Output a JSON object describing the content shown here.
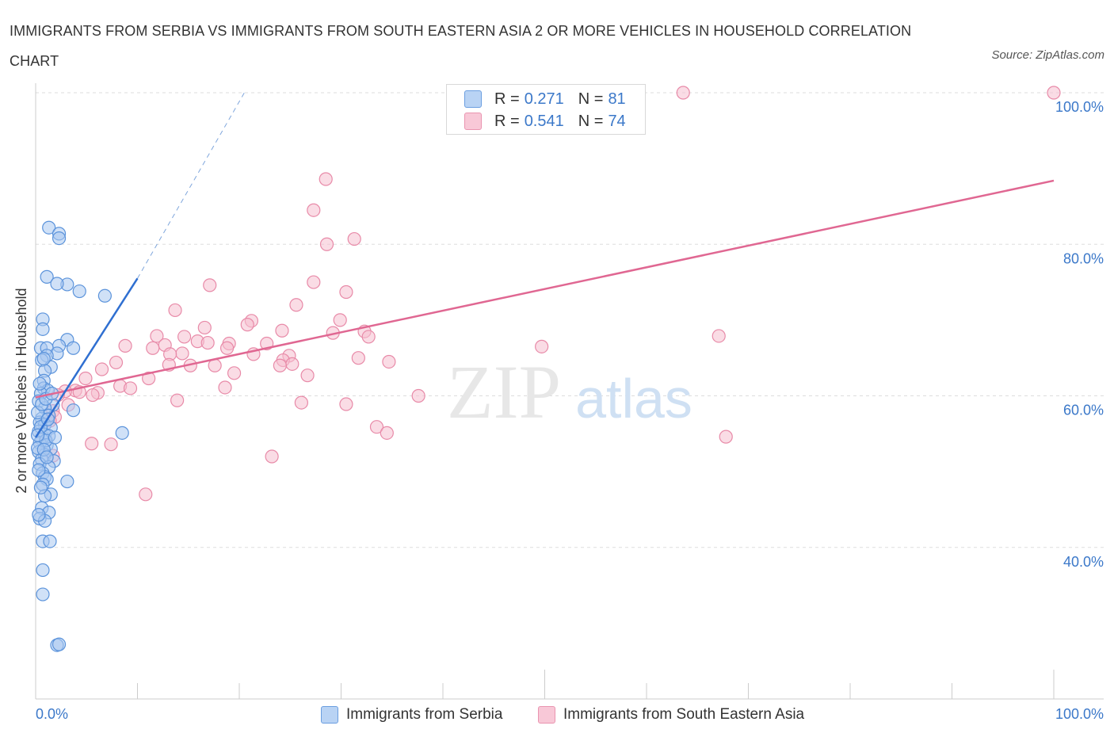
{
  "title": "IMMIGRANTS FROM SERBIA VS IMMIGRANTS FROM SOUTH EASTERN ASIA 2 OR MORE VEHICLES IN HOUSEHOLD CORRELATION CHART",
  "source": "Source: ZipAtlas.com",
  "watermark": {
    "zip": "ZIP",
    "atlas": "atlas"
  },
  "legend": {
    "rows": [
      {
        "r_label": "R =",
        "r_value": "0.271",
        "n_label": "N =",
        "n_value": "81"
      },
      {
        "r_label": "R =",
        "r_value": "0.541",
        "n_label": "N =",
        "n_value": "74"
      }
    ]
  },
  "bottom_legend": [
    "Immigrants from Serbia",
    "Immigrants from South Eastern Asia"
  ],
  "colors": {
    "serbia_fill": "#a9c8f0",
    "serbia_stroke": "#5b93db",
    "serbia_line": "#2f6fd1",
    "sea_fill": "#f6bfd0",
    "sea_stroke": "#e88aa8",
    "sea_line": "#e06792",
    "axis_label": "#3b78c9",
    "grid": "#dddddd"
  },
  "chart_data": {
    "type": "scatter",
    "ylabel": "2 or more Vehicles in Household",
    "xlim": [
      0,
      100
    ],
    "ylim": [
      20,
      100
    ],
    "x_tick_labels": [
      "0.0%",
      "100.0%"
    ],
    "y_ticks": [
      40,
      60,
      80,
      100
    ],
    "y_tick_labels": [
      "40.0%",
      "60.0%",
      "80.0%",
      "100.0%"
    ],
    "grid": "horizontal dashed",
    "series": [
      {
        "name": "Immigrants from Serbia",
        "color": "#5b93db",
        "R": 0.271,
        "N": 81,
        "trend": {
          "x": [
            0,
            10
          ],
          "y": [
            54.5,
            75.5
          ],
          "dashed_to": {
            "x": 20.5,
            "y": 100
          }
        },
        "points": [
          [
            1.3,
            82.2
          ],
          [
            2.3,
            81.4
          ],
          [
            2.3,
            80.8
          ],
          [
            1.1,
            75.7
          ],
          [
            3.1,
            74.7
          ],
          [
            2.1,
            74.8
          ],
          [
            4.3,
            73.8
          ],
          [
            6.8,
            73.2
          ],
          [
            0.7,
            70.1
          ],
          [
            0.7,
            68.8
          ],
          [
            3.1,
            67.4
          ],
          [
            2.3,
            66.6
          ],
          [
            0.5,
            66.3
          ],
          [
            1.1,
            66.3
          ],
          [
            3.7,
            66.3
          ],
          [
            2.1,
            65.6
          ],
          [
            1.1,
            65.3
          ],
          [
            0.6,
            64.7
          ],
          [
            1.5,
            63.8
          ],
          [
            0.9,
            63.3
          ],
          [
            0.8,
            62.0
          ],
          [
            0.8,
            61.0
          ],
          [
            1.2,
            60.7
          ],
          [
            0.5,
            60.3
          ],
          [
            0.3,
            59.3
          ],
          [
            1.7,
            58.8
          ],
          [
            0.9,
            58.4
          ],
          [
            3.7,
            58.1
          ],
          [
            1.3,
            57.4
          ],
          [
            0.6,
            57.0
          ],
          [
            0.4,
            56.5
          ],
          [
            0.9,
            56.2
          ],
          [
            1.5,
            55.8
          ],
          [
            0.3,
            55.3
          ],
          [
            0.9,
            54.9
          ],
          [
            1.3,
            54.7
          ],
          [
            0.6,
            54.3
          ],
          [
            0.4,
            53.8
          ],
          [
            1.1,
            53.5
          ],
          [
            1.5,
            53.0
          ],
          [
            0.3,
            52.6
          ],
          [
            0.9,
            52.2
          ],
          [
            0.6,
            51.6
          ],
          [
            1.8,
            51.4
          ],
          [
            0.4,
            51.0
          ],
          [
            1.3,
            50.6
          ],
          [
            0.7,
            49.8
          ],
          [
            0.9,
            49.3
          ],
          [
            1.1,
            49.0
          ],
          [
            3.1,
            48.7
          ],
          [
            0.7,
            48.3
          ],
          [
            1.5,
            47.0
          ],
          [
            0.9,
            46.8
          ],
          [
            0.6,
            45.2
          ],
          [
            1.3,
            44.6
          ],
          [
            0.4,
            43.8
          ],
          [
            0.9,
            43.5
          ],
          [
            0.7,
            40.8
          ],
          [
            1.4,
            40.8
          ],
          [
            0.7,
            37.0
          ],
          [
            0.7,
            33.8
          ],
          [
            2.1,
            27.1
          ],
          [
            2.3,
            27.2
          ],
          [
            8.5,
            55.1
          ],
          [
            0.2,
            57.8
          ],
          [
            0.5,
            55.9
          ],
          [
            1.0,
            54.1
          ],
          [
            0.2,
            53.1
          ],
          [
            0.8,
            52.9
          ],
          [
            0.3,
            50.2
          ],
          [
            1.2,
            56.9
          ],
          [
            0.6,
            58.9
          ],
          [
            1.9,
            54.5
          ],
          [
            0.4,
            61.6
          ],
          [
            1.0,
            59.6
          ],
          [
            0.5,
            47.9
          ],
          [
            0.8,
            64.9
          ],
          [
            1.6,
            60.3
          ],
          [
            0.3,
            44.3
          ],
          [
            1.1,
            51.9
          ],
          [
            0.2,
            54.8
          ]
        ]
      },
      {
        "name": "Immigrants from South Eastern Asia",
        "color": "#e88aa8",
        "R": 0.541,
        "N": 74,
        "trend": {
          "x": [
            0,
            100
          ],
          "y": [
            59.8,
            88.4
          ]
        },
        "points": [
          [
            63.6,
            100
          ],
          [
            100,
            100
          ],
          [
            28.5,
            88.6
          ],
          [
            27.3,
            84.5
          ],
          [
            31.3,
            80.7
          ],
          [
            28.6,
            80.0
          ],
          [
            17.1,
            74.6
          ],
          [
            27.3,
            75.0
          ],
          [
            30.5,
            73.7
          ],
          [
            25.6,
            72.0
          ],
          [
            13.7,
            71.3
          ],
          [
            21.2,
            69.9
          ],
          [
            29.9,
            70.0
          ],
          [
            20.8,
            69.4
          ],
          [
            16.6,
            69.0
          ],
          [
            24.2,
            68.6
          ],
          [
            29.2,
            68.3
          ],
          [
            32.3,
            68.5
          ],
          [
            11.9,
            67.9
          ],
          [
            14.6,
            67.8
          ],
          [
            32.7,
            67.8
          ],
          [
            67.1,
            67.9
          ],
          [
            15.9,
            67.2
          ],
          [
            16.9,
            67.0
          ],
          [
            19.0,
            66.9
          ],
          [
            22.7,
            66.9
          ],
          [
            12.7,
            66.7
          ],
          [
            8.8,
            66.6
          ],
          [
            18.8,
            66.3
          ],
          [
            11.5,
            66.3
          ],
          [
            14.4,
            65.6
          ],
          [
            49.7,
            66.5
          ],
          [
            13.2,
            65.5
          ],
          [
            21.4,
            65.5
          ],
          [
            24.9,
            65.3
          ],
          [
            31.7,
            65.0
          ],
          [
            24.3,
            64.7
          ],
          [
            25.2,
            64.2
          ],
          [
            34.7,
            64.5
          ],
          [
            7.9,
            64.4
          ],
          [
            13.1,
            64.1
          ],
          [
            15.2,
            64.0
          ],
          [
            17.6,
            64.0
          ],
          [
            24.0,
            64.0
          ],
          [
            6.5,
            63.5
          ],
          [
            19.5,
            63.0
          ],
          [
            26.7,
            62.7
          ],
          [
            11.1,
            62.3
          ],
          [
            4.9,
            62.3
          ],
          [
            8.3,
            61.3
          ],
          [
            18.6,
            61.1
          ],
          [
            9.3,
            61.0
          ],
          [
            3.9,
            60.7
          ],
          [
            4.3,
            60.5
          ],
          [
            6.1,
            60.4
          ],
          [
            2.9,
            60.6
          ],
          [
            5.6,
            60.1
          ],
          [
            37.6,
            60.0
          ],
          [
            2.2,
            60.1
          ],
          [
            13.9,
            59.4
          ],
          [
            26.1,
            59.1
          ],
          [
            30.5,
            58.9
          ],
          [
            3.2,
            58.8
          ],
          [
            1.7,
            58.0
          ],
          [
            1.9,
            57.2
          ],
          [
            1.4,
            56.7
          ],
          [
            33.5,
            55.9
          ],
          [
            34.5,
            55.1
          ],
          [
            67.8,
            54.6
          ],
          [
            5.5,
            53.7
          ],
          [
            7.4,
            53.6
          ],
          [
            23.2,
            52.0
          ],
          [
            1.7,
            52.1
          ],
          [
            10.8,
            47.0
          ]
        ]
      }
    ]
  }
}
